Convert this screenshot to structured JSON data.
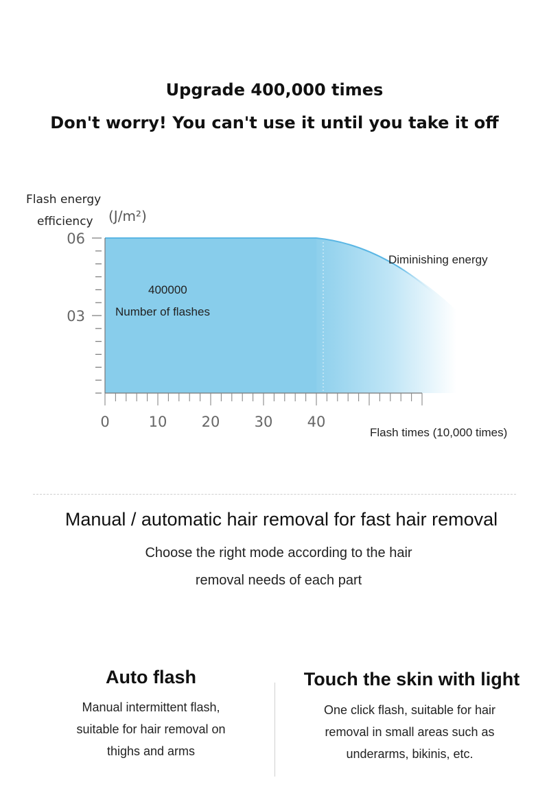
{
  "header": {
    "line1": "Upgrade 400,000 times",
    "line2": "Don't worry! You can't use it until you take it off"
  },
  "chart_data": {
    "type": "area",
    "ylabel_line1": "Flash energy",
    "ylabel_line2": "efficiency",
    "yunit": "(J/m²)",
    "xlabel": "Flash times (10,000 times)",
    "y_tick_labels": [
      "06",
      "03"
    ],
    "x_tick_labels": [
      "0",
      "10",
      "20",
      "30",
      "40"
    ],
    "ylim": [
      0,
      6
    ],
    "xlim": [
      0,
      60
    ],
    "series": [
      {
        "x": [
          0,
          40
        ],
        "y": [
          6,
          6
        ]
      }
    ],
    "annotations": {
      "count": "400000",
      "count_label": "Number of flashes",
      "decline": "Diminishing energy"
    },
    "fill_color": "#88cdeb",
    "curve_color": "#5ab6e4"
  },
  "modes": {
    "title": "Manual / automatic hair removal for fast hair removal",
    "desc_line1": "Choose the right mode according to the hair",
    "desc_line2": "removal needs of each part"
  },
  "features": [
    {
      "title": "Auto flash",
      "lines": [
        "Manual intermittent flash,",
        "suitable for hair removal on",
        "thighs and arms"
      ]
    },
    {
      "title": "Touch the skin with light",
      "lines": [
        "One click flash, suitable for hair",
        "removal in small areas such as",
        "underarms, bikinis, etc."
      ]
    }
  ]
}
